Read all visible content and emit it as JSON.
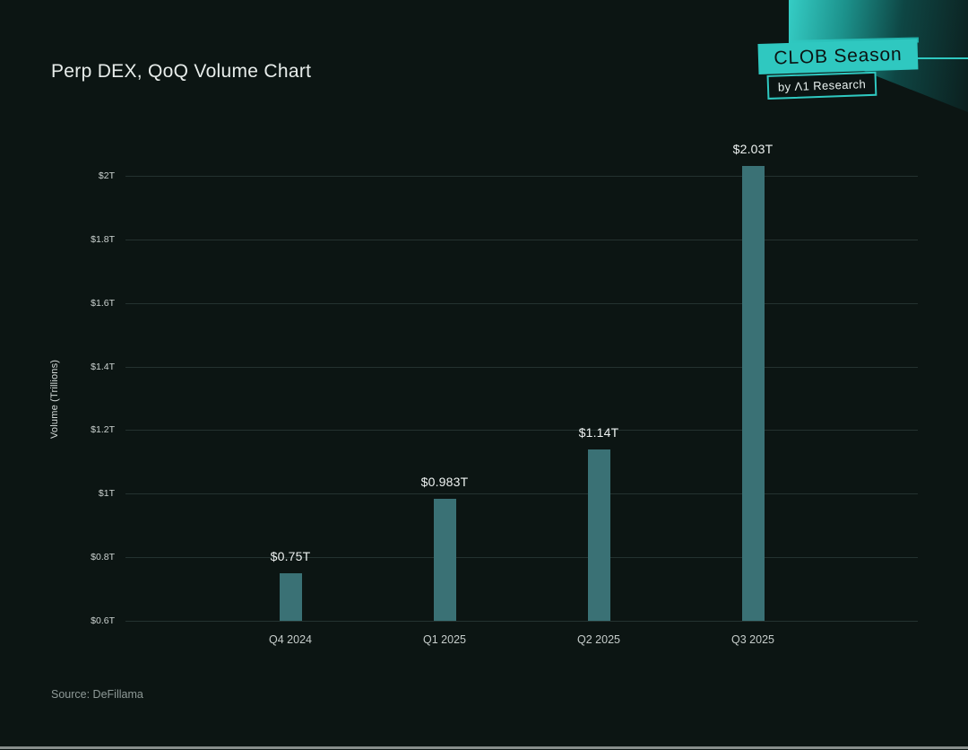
{
  "page": {
    "title": "Perp DEX, QoQ Volume Chart",
    "source": "Source: DeFillama"
  },
  "badge": {
    "primary": "CLOB Season",
    "secondary": "by Λ1 Research"
  },
  "colors": {
    "background": "#0C1513",
    "accent_teal": "#2FC8C0",
    "bar": "#3A7175",
    "gridline": "#243230",
    "title_text": "#E8EDEB",
    "tick_text": "#CBD2D0",
    "muted_text": "#8E9997",
    "badge_text_dark": "#0B1413"
  },
  "chart_data": {
    "type": "bar",
    "title": "Perp DEX, QoQ Volume Chart",
    "xlabel": "",
    "ylabel": "Volume (Trillions)",
    "categories": [
      "Q4 2024",
      "Q1 2025",
      "Q2 2025",
      "Q3 2025"
    ],
    "values": [
      0.75,
      0.983,
      1.14,
      2.03
    ],
    "bar_labels": [
      "$0.75T",
      "$0.983T",
      "$1.14T",
      "$2.03T"
    ],
    "yticks": [
      {
        "label": "$2T",
        "value": 2.0
      },
      {
        "label": "$1.8T",
        "value": 1.8
      },
      {
        "label": "$1.6T",
        "value": 1.6
      },
      {
        "label": "$1.4T",
        "value": 1.4
      },
      {
        "label": "$1.2T",
        "value": 1.2
      },
      {
        "label": "$1T",
        "value": 1.0
      },
      {
        "label": "$0.8T",
        "value": 0.8
      },
      {
        "label": "$0.6T",
        "value": 0.6
      }
    ],
    "ylim": [
      0.6,
      2.0
    ],
    "grid": true,
    "legend": false
  }
}
